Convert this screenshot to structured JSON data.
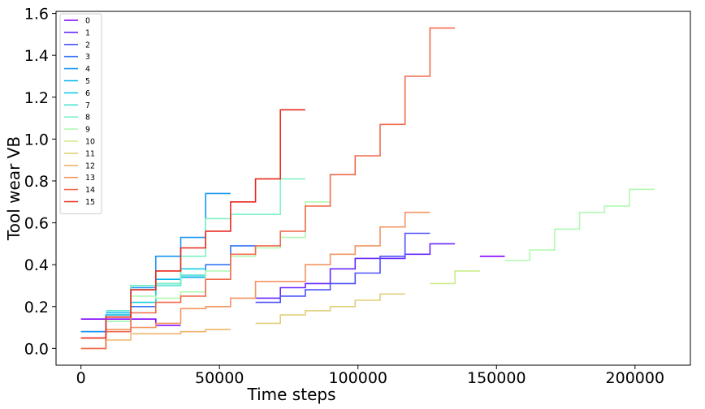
{
  "chart_data": {
    "type": "line",
    "step": "post",
    "title": "",
    "xlabel": "Time steps",
    "ylabel": "Tool wear VB",
    "xlim": [
      -9000,
      220000
    ],
    "ylim": [
      -0.08,
      1.61
    ],
    "xticks": [
      0,
      50000,
      100000,
      150000,
      200000
    ],
    "xtick_labels": [
      "0",
      "50000",
      "100000",
      "150000",
      "200000"
    ],
    "yticks": [
      0.0,
      0.2,
      0.4,
      0.6,
      0.8,
      1.0,
      1.2,
      1.4,
      1.6
    ],
    "ytick_labels": [
      "0.0",
      "0.2",
      "0.4",
      "0.6",
      "0.8",
      "1.0",
      "1.2",
      "1.4",
      "1.6"
    ],
    "grid": false,
    "legend_position": "top-left",
    "series": [
      {
        "name": "0",
        "color": "#8000ff",
        "x": [
          0,
          9000,
          18000,
          27000,
          36000
        ],
        "y": [
          0.14,
          0.14,
          0.14,
          0.11,
          0.11
        ],
        "end": 36000
      },
      {
        "name": "1",
        "color": "#6629fe",
        "x": [
          63000,
          72000,
          81000,
          90000,
          99000,
          108000,
          117000,
          126000
        ],
        "y": [
          0.24,
          0.29,
          0.31,
          0.38,
          0.43,
          0.43,
          0.45,
          0.5
        ],
        "end": 135000
      },
      {
        "name": "2",
        "color": "#4c50fc",
        "x": [
          63000,
          72000,
          81000,
          90000,
          99000,
          108000,
          117000
        ],
        "y": [
          0.22,
          0.25,
          0.28,
          0.31,
          0.36,
          0.44,
          0.55
        ],
        "end": 126000
      },
      {
        "name": "3",
        "color": "#3276f8",
        "x": [
          0,
          9000,
          18000,
          27000,
          36000,
          45000,
          54000
        ],
        "y": [
          0.08,
          0.16,
          0.2,
          0.31,
          0.34,
          0.4,
          0.49
        ],
        "end": 63000
      },
      {
        "name": "4",
        "color": "#1996f3",
        "x": [
          0,
          9000,
          18000,
          27000,
          36000,
          45000
        ],
        "y": [
          0.08,
          0.13,
          0.29,
          0.44,
          0.53,
          0.74
        ],
        "end": 54000
      },
      {
        "name": "5",
        "color": "#00b5eb",
        "x": [
          9000,
          18000,
          27000,
          36000
        ],
        "y": [
          0.17,
          0.3,
          0.33,
          0.34
        ],
        "end": 45000
      },
      {
        "name": "6",
        "color": "#1acfe2",
        "x": [
          9000,
          18000,
          27000,
          36000
        ],
        "y": [
          0.16,
          0.22,
          0.31,
          0.38
        ],
        "end": 45000
      },
      {
        "name": "7",
        "color": "#4ce3d5",
        "x": [
          9000,
          18000,
          27000,
          36000
        ],
        "y": [
          0.18,
          0.28,
          0.3,
          0.35
        ],
        "end": 45000
      },
      {
        "name": "8",
        "color": "#7ff2c4",
        "x": [
          9000,
          18000,
          27000,
          36000,
          45000,
          54000,
          63000,
          72000
        ],
        "y": [
          0.15,
          0.3,
          0.31,
          0.44,
          0.62,
          0.64,
          0.64,
          0.81
        ],
        "end": 81000
      },
      {
        "name": "9",
        "color": "#b2f9b2",
        "x": [
          9000,
          18000,
          27000,
          36000,
          45000,
          54000,
          63000,
          72000,
          81000
        ],
        "y": [
          0.13,
          0.25,
          0.24,
          0.27,
          0.37,
          0.44,
          0.48,
          0.53,
          0.7
        ],
        "end": 90000
      },
      {
        "name": "10",
        "color": "#cdeb8b",
        "x": [
          126000,
          135000,
          144000
        ],
        "y": [
          0.31,
          0.37,
          0.37
        ],
        "end": 144000
      },
      {
        "name": "11",
        "color": "#e0cf7a",
        "x": [
          63000,
          72000,
          81000,
          90000,
          99000,
          108000
        ],
        "y": [
          0.12,
          0.16,
          0.18,
          0.2,
          0.23,
          0.26
        ],
        "end": 117000
      },
      {
        "name": "12",
        "color": "#f0b56c",
        "x": [
          0,
          9000,
          18000,
          27000,
          36000,
          45000,
          54000
        ],
        "y": [
          0.0,
          0.04,
          0.07,
          0.07,
          0.08,
          0.09,
          0.09
        ],
        "end": 54000
      },
      {
        "name": "13",
        "color": "#f39560",
        "x": [
          0,
          9000,
          18000,
          27000,
          36000,
          45000,
          54000,
          63000,
          72000,
          81000,
          90000,
          99000,
          108000,
          117000
        ],
        "y": [
          0.05,
          0.09,
          0.1,
          0.12,
          0.19,
          0.2,
          0.24,
          0.32,
          0.32,
          0.4,
          0.45,
          0.49,
          0.58,
          0.65
        ],
        "end": 126000
      },
      {
        "name": "14",
        "color": "#f06a4d",
        "x": [
          0,
          9000,
          18000,
          27000,
          36000,
          45000,
          54000,
          63000,
          72000,
          81000,
          90000,
          99000,
          108000,
          117000,
          126000
        ],
        "y": [
          0.0,
          0.08,
          0.17,
          0.22,
          0.25,
          0.33,
          0.45,
          0.49,
          0.56,
          0.68,
          0.83,
          0.92,
          1.07,
          1.3,
          1.53
        ],
        "end": 135000
      },
      {
        "name": "15",
        "color": "#e8281e",
        "x": [
          0,
          9000,
          18000,
          27000,
          36000,
          45000,
          54000,
          63000,
          72000
        ],
        "y": [
          0.05,
          0.15,
          0.28,
          0.37,
          0.48,
          0.56,
          0.7,
          0.81,
          1.14
        ],
        "end": 81000
      },
      {
        "name": "",
        "color": "#8000ff",
        "x": [
          144000
        ],
        "y": [
          0.44
        ],
        "end": 153000,
        "in_legend": false
      },
      {
        "name": "",
        "color": "#b2f9b2",
        "x": [
          153000,
          162000,
          171000,
          180000,
          189000,
          198000
        ],
        "y": [
          0.42,
          0.47,
          0.57,
          0.65,
          0.68,
          0.76
        ],
        "end": 207000,
        "in_legend": false
      }
    ]
  }
}
